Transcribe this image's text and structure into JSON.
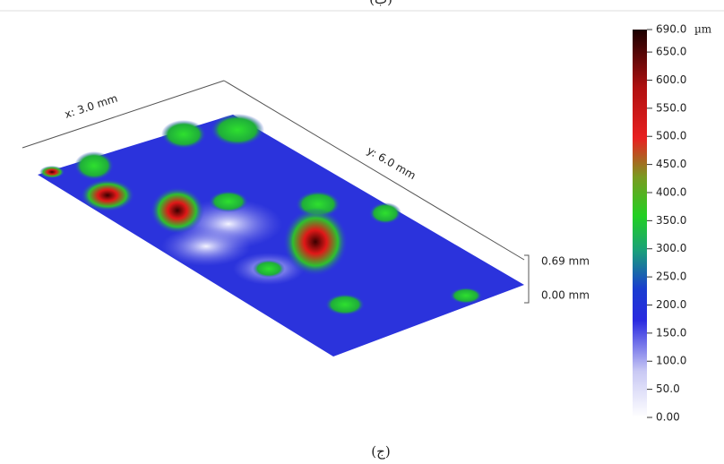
{
  "top_caption": "(ب)",
  "caption": "(ج)",
  "surface": {
    "x_label": "x: 3.0 mm",
    "y_label": "y: 6.0 mm",
    "z_top": "0.69 mm",
    "z_bottom": "0.00 mm"
  },
  "colorbar": {
    "unit": "µm",
    "lim": [
      0,
      690
    ],
    "ticks": [
      {
        "value": 690,
        "label": "690.0"
      },
      {
        "value": 650,
        "label": "650.0"
      },
      {
        "value": 600,
        "label": "600.0"
      },
      {
        "value": 550,
        "label": "550.0"
      },
      {
        "value": 500,
        "label": "500.0"
      },
      {
        "value": 450,
        "label": "450.0"
      },
      {
        "value": 400,
        "label": "400.0"
      },
      {
        "value": 350,
        "label": "350.0"
      },
      {
        "value": 300,
        "label": "300.0"
      },
      {
        "value": 250,
        "label": "250.0"
      },
      {
        "value": 200,
        "label": "200.0"
      },
      {
        "value": 150,
        "label": "150.0"
      },
      {
        "value": 100,
        "label": "100.0"
      },
      {
        "value": 50,
        "label": "50.0"
      },
      {
        "value": 0,
        "label": "0.00"
      }
    ]
  }
}
